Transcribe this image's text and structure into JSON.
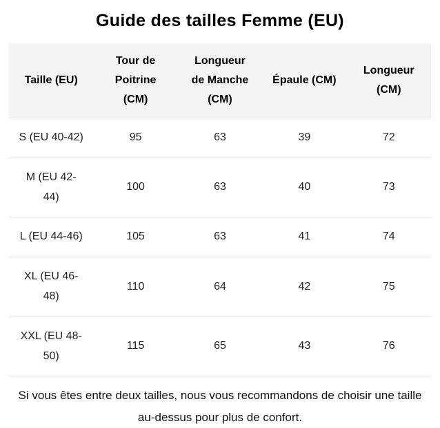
{
  "page": {
    "title": "Guide des tailles Femme (EU)"
  },
  "table": {
    "headers": [
      "Taille (EU)",
      "Tour de Poitrine (CM)",
      "Longueur de Manche (CM)",
      "Épaule (CM)",
      "Longueur (CM)"
    ],
    "rows": [
      [
        "S (EU 40-42)",
        "95",
        "63",
        "39",
        "72"
      ],
      [
        "M (EU 42-44)",
        "100",
        "63",
        "40",
        "73"
      ],
      [
        "L (EU 44-46)",
        "105",
        "63",
        "41",
        "74"
      ],
      [
        "XL (EU 46-48)",
        "110",
        "64",
        "42",
        "75"
      ],
      [
        "XXL (EU 48-50)",
        "115",
        "65",
        "43",
        "76"
      ]
    ]
  },
  "footer": {
    "note": "Si vous êtes entre deux tailles, nous vous recommandons de choisir une taille au-dessus pour plus de confort."
  },
  "colors": {
    "header_background": "#f4f4f4",
    "row_divider": "#e3e3e3",
    "title_text": "#000000",
    "body_text": "#1f1f1f"
  }
}
